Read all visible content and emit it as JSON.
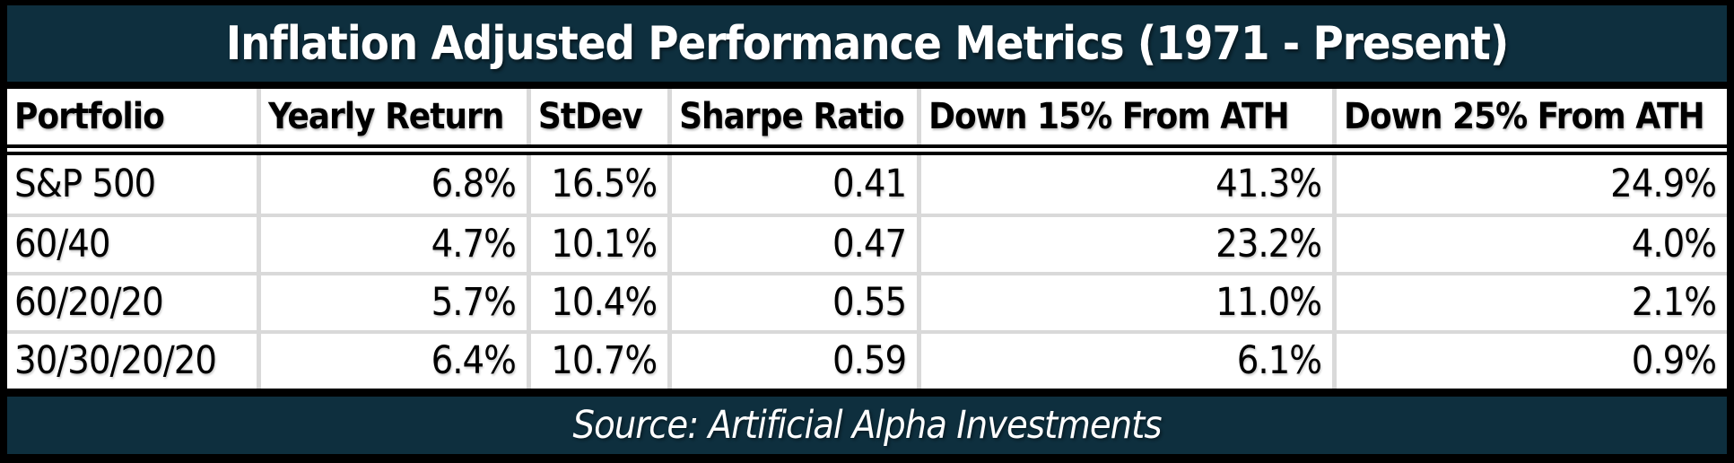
{
  "chart_data": {
    "type": "table",
    "title": "Inflation Adjusted Performance Metrics (1971 - Present)",
    "source": "Source: Artificial Alpha Investments",
    "columns": [
      "Portfolio",
      "Yearly Return",
      "StDev",
      "Sharpe Ratio",
      "Down 15% From ATH",
      "Down 25% From ATH"
    ],
    "rows": [
      [
        "S&P 500",
        "6.8%",
        "16.5%",
        "0.41",
        "41.3%",
        "24.9%"
      ],
      [
        "60/40",
        "4.7%",
        "10.1%",
        "0.47",
        "23.2%",
        "4.0%"
      ],
      [
        "60/20/20",
        "5.7%",
        "10.4%",
        "0.55",
        "11.0%",
        "2.1%"
      ],
      [
        "30/30/20/20",
        "6.4%",
        "10.7%",
        "0.59",
        "6.1%",
        "0.9%"
      ]
    ]
  },
  "colors": {
    "band_background": "#0e2f3e",
    "band_text": "#ffffff",
    "frame_border": "#000000",
    "grid_line": "#d9d9d9",
    "table_background": "#ffffff",
    "table_text": "#000000"
  }
}
